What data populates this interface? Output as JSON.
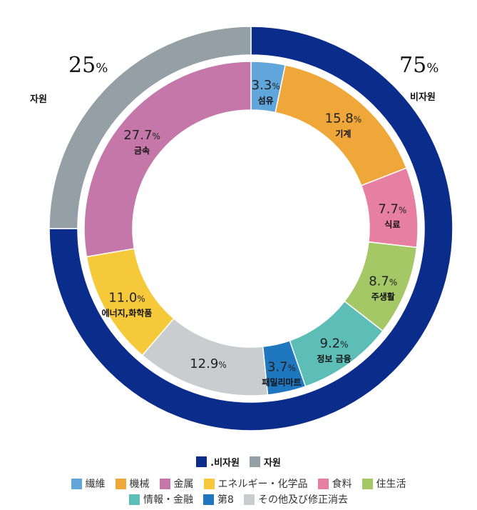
{
  "chart_data": {
    "type": "pie",
    "subtype": "double-donut",
    "center": [
      352,
      320
    ],
    "outer_ring": {
      "radius_outer": 283,
      "radius_inner": 243,
      "slices": [
        {
          "name": "비자원",
          "value": 75,
          "color": "#0a2d8c",
          "label": "75%"
        },
        {
          "name": "자원",
          "value": 25,
          "color": "#959fa6",
          "label": "25%"
        }
      ]
    },
    "inner_ring": {
      "radius_outer": 234,
      "radius_inner": 166,
      "slices": [
        {
          "name": "섬유",
          "legend": "繊維",
          "value": 3.3,
          "color": "#60a6da"
        },
        {
          "name": "기계",
          "legend": "機械",
          "value": 15.8,
          "color": "#efa73a"
        },
        {
          "name": "식료",
          "legend": "食料",
          "value": 7.7,
          "color": "#e67fa1"
        },
        {
          "name": "주생활",
          "legend": "住生活",
          "value": 8.7,
          "color": "#a4c866"
        },
        {
          "name": "정보 금융",
          "legend": "情報・金融",
          "value": 9.2,
          "color": "#5dbdb7"
        },
        {
          "name": "패밀리마트",
          "legend": "第8",
          "value": 3.7,
          "color": "#1f77bf"
        },
        {
          "name": "",
          "legend": "その他及び修正消去",
          "value": 12.9,
          "color": "#c9cdd0"
        },
        {
          "name": "에너지,화학품",
          "legend": "エネルギー・化学品",
          "value": 11.0,
          "color": "#f5c93a"
        },
        {
          "name": "금속",
          "legend": "金属",
          "value": 27.7,
          "color": "#c677aa"
        }
      ]
    },
    "legend_position": "bottom"
  },
  "labels": {
    "pct_left": "25",
    "pct_right": "75",
    "pct_sign": "%",
    "left_name": "자원",
    "right_name": "비자원"
  },
  "legend": {
    "top": [
      {
        "label": ".비자원",
        "color": "#0a2d8c"
      },
      {
        "label": "자원",
        "color": "#959fa6"
      }
    ],
    "row1": [
      {
        "label": "繊維",
        "color": "#60a6da"
      },
      {
        "label": "機械",
        "color": "#efa73a"
      },
      {
        "label": "金属",
        "color": "#c677aa"
      },
      {
        "label": "エネルギー・化学品",
        "color": "#f5c93a"
      },
      {
        "label": "食料",
        "color": "#e67fa1"
      },
      {
        "label": "住生活",
        "color": "#a4c866"
      }
    ],
    "row2": [
      {
        "label": "情報・金融",
        "color": "#5dbdb7"
      },
      {
        "label": "第8",
        "color": "#1f77bf"
      },
      {
        "label": "その他及び修正消去",
        "color": "#c9cdd0"
      }
    ]
  }
}
